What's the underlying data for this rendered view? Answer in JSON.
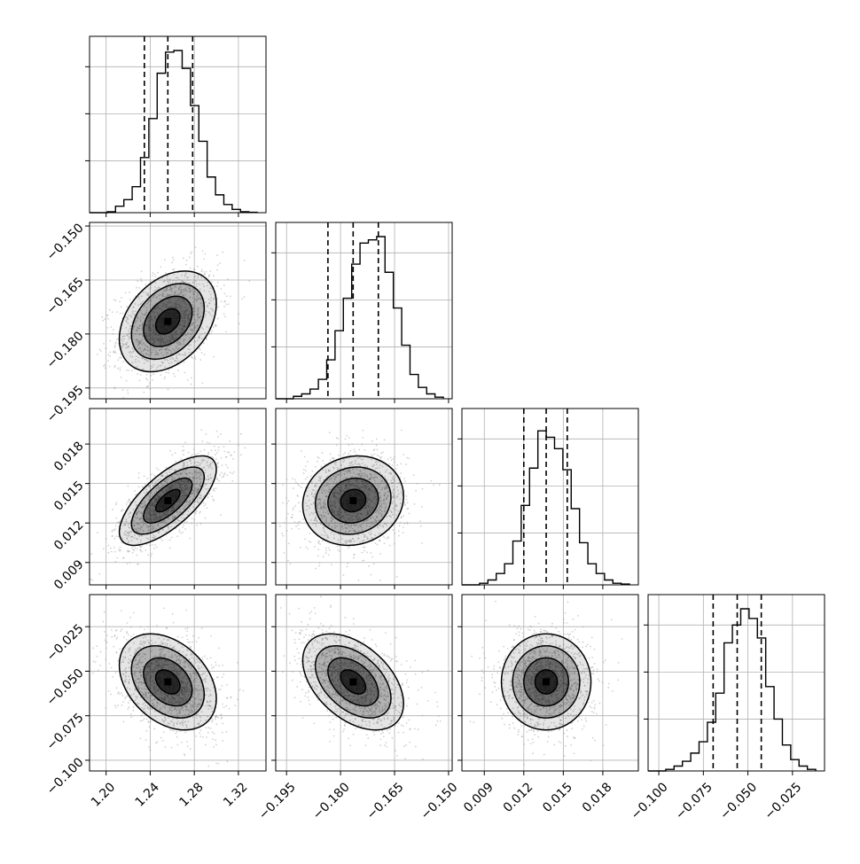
{
  "chart_data": {
    "type": "corner",
    "grid": true,
    "variables": [
      {
        "range": [
          1.185,
          1.345
        ],
        "ticks": [
          1.2,
          1.24,
          1.28,
          1.32
        ],
        "tick_labels": [
          "1.20",
          "1.24",
          "1.28",
          "1.32"
        ],
        "quantiles": [
          1.2347,
          1.256,
          1.2785
        ],
        "hist": [
          0.006,
          0.04,
          0.08,
          0.16,
          0.34,
          0.58,
          0.86,
          0.99,
          1.0,
          0.89,
          0.66,
          0.44,
          0.22,
          0.11,
          0.05,
          0.02,
          0.006,
          0.002
        ],
        "mean": 1.256,
        "sd": 0.022
      },
      {
        "range": [
          -0.198,
          -0.149
        ],
        "ticks": [
          -0.195,
          -0.18,
          -0.165,
          -0.15
        ],
        "tick_labels": [
          "−0.195",
          "−0.180",
          "−0.165",
          "−0.150"
        ],
        "quantiles": [
          -0.1835,
          -0.1765,
          -0.1695
        ],
        "hist": [
          0.015,
          0.03,
          0.06,
          0.12,
          0.24,
          0.42,
          0.62,
          0.83,
          0.96,
          0.98,
          1.0,
          0.78,
          0.56,
          0.33,
          0.15,
          0.07,
          0.03,
          0.01
        ],
        "mean": -0.1765,
        "sd": 0.007
      },
      {
        "range": [
          0.0073,
          0.0207
        ],
        "ticks": [
          0.009,
          0.012,
          0.015,
          0.018
        ],
        "tick_labels": [
          "0.009",
          "0.012",
          "0.015",
          "0.018"
        ],
        "quantiles": [
          0.012,
          0.0137,
          0.0153
        ],
        "hist": [
          0.01,
          0.03,
          0.07,
          0.13,
          0.27,
          0.49,
          0.72,
          0.95,
          0.91,
          0.84,
          0.71,
          0.47,
          0.26,
          0.13,
          0.07,
          0.03,
          0.01,
          0.005
        ],
        "mean": 0.0137,
        "sd": 0.0017
      },
      {
        "range": [
          -0.106,
          -0.007
        ],
        "ticks": [
          -0.1,
          -0.075,
          -0.05,
          -0.025
        ],
        "tick_labels": [
          "−0.100",
          "−0.075",
          "−0.050",
          "−0.025"
        ],
        "quantiles": [
          -0.0695,
          -0.056,
          -0.0425
        ],
        "hist": [
          0.01,
          0.03,
          0.06,
          0.11,
          0.18,
          0.3,
          0.48,
          0.79,
          0.9,
          1.0,
          0.94,
          0.82,
          0.52,
          0.32,
          0.16,
          0.07,
          0.03,
          0.01
        ],
        "mean": -0.056,
        "sd": 0.0135
      }
    ],
    "correlations": [
      [
        1.0,
        0.35,
        0.7,
        -0.35
      ],
      [
        0.35,
        1.0,
        0.1,
        -0.45
      ],
      [
        0.7,
        0.1,
        1.0,
        0.0
      ],
      [
        -0.35,
        -0.45,
        0.0,
        1.0
      ]
    ],
    "contour_levels_sigma": [
      0.5,
      1.0,
      1.5,
      2.0
    ]
  },
  "colors": {
    "line": "#000000",
    "grid": "#b0b0b0",
    "points": "#9a9a9a"
  }
}
